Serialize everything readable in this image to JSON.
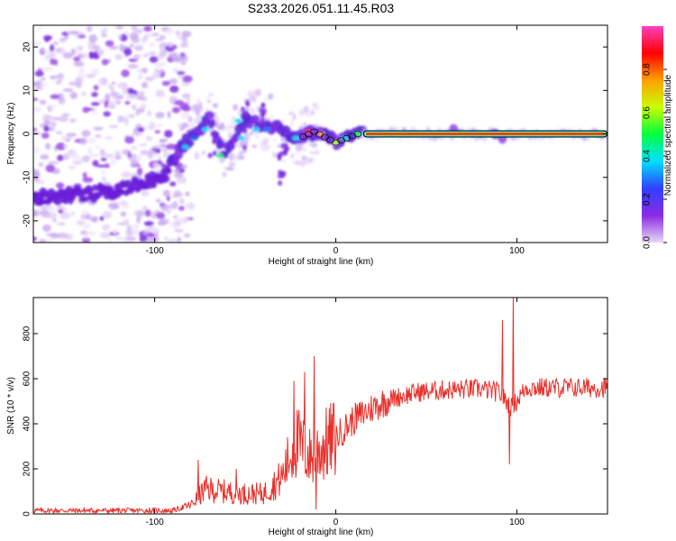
{
  "title": "S233.2026.051.11.45.R03",
  "chart_data": [
    {
      "type": "heatmap",
      "xlabel": "Height of straight line (km)",
      "ylabel": "Frequency (Hz)",
      "xlim": [
        -167,
        150
      ],
      "ylim": [
        -25,
        25
      ],
      "xticks": [
        -100,
        0,
        100
      ],
      "yticks": [
        -20,
        -10,
        0,
        10,
        20
      ],
      "colorbar": {
        "label": "Normalized spectral amplitude",
        "range": [
          0,
          1
        ],
        "ticks": [
          "0.0",
          "0.2",
          "0.4",
          "0.6",
          "0.8"
        ],
        "colors": [
          "#e6d9f5",
          "#8a2be2",
          "#3040ff",
          "#00e0ff",
          "#00ff40",
          "#c8ff00",
          "#ffa000",
          "#ff0000",
          "#ff40c0"
        ]
      },
      "ridge": {
        "description_points": [
          {
            "x": -167,
            "y": -15
          },
          {
            "x": -120,
            "y": -13
          },
          {
            "x": -95,
            "y": -10
          },
          {
            "x": -85,
            "y": -3
          },
          {
            "x": -70,
            "y": 4
          },
          {
            "x": -62,
            "y": -5
          },
          {
            "x": -50,
            "y": 3
          },
          {
            "x": -35,
            "y": 2
          },
          {
            "x": -20,
            "y": -1
          },
          {
            "x": -12,
            "y": 0.5
          },
          {
            "x": 0,
            "y": -2
          },
          {
            "x": 12,
            "y": 0
          },
          {
            "x": 150,
            "y": 0
          }
        ]
      }
    },
    {
      "type": "line",
      "xlabel": "Height of straight line (km)",
      "ylabel": "SNR (10 * v/v)",
      "xlim": [
        -167,
        150
      ],
      "ylim": [
        0,
        960
      ],
      "xticks": [
        -100,
        0,
        100
      ],
      "yticks": [
        0,
        200,
        400,
        600,
        800
      ],
      "series": [
        {
          "name": "SNR",
          "color": "#e8302a",
          "envelope": [
            {
              "x": -167,
              "y": 15
            },
            {
              "x": -90,
              "y": 15
            },
            {
              "x": -80,
              "y": 40
            },
            {
              "x": -72,
              "y": 110
            },
            {
              "x": -62,
              "y": 100
            },
            {
              "x": -50,
              "y": 90
            },
            {
              "x": -40,
              "y": 90
            },
            {
              "x": -30,
              "y": 160
            },
            {
              "x": -22,
              "y": 320
            },
            {
              "x": -14,
              "y": 250
            },
            {
              "x": -10,
              "y": 280
            },
            {
              "x": 0,
              "y": 340
            },
            {
              "x": 10,
              "y": 420
            },
            {
              "x": 20,
              "y": 470
            },
            {
              "x": 30,
              "y": 510
            },
            {
              "x": 45,
              "y": 540
            },
            {
              "x": 60,
              "y": 550
            },
            {
              "x": 80,
              "y": 555
            },
            {
              "x": 90,
              "y": 540
            },
            {
              "x": 97,
              "y": 470
            },
            {
              "x": 105,
              "y": 560
            },
            {
              "x": 150,
              "y": 560
            }
          ],
          "spikes": [
            {
              "x": -76,
              "y": 240
            },
            {
              "x": -55,
              "y": 200
            },
            {
              "x": -23,
              "y": 590
            },
            {
              "x": -17,
              "y": 630
            },
            {
              "x": -12,
              "y": 700
            },
            {
              "x": -11,
              "y": 20
            },
            {
              "x": 92,
              "y": 860
            },
            {
              "x": 96,
              "y": 220
            },
            {
              "x": 98,
              "y": 960
            }
          ]
        }
      ]
    }
  ]
}
